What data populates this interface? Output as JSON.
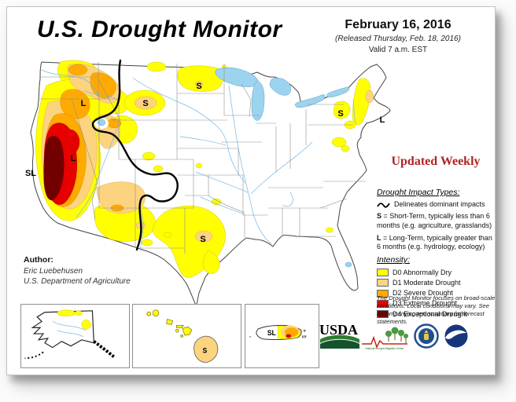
{
  "header": {
    "title": "U.S. Drought Monitor",
    "date": "February 16, 2016",
    "released": "(Released Thursday, Feb. 18, 2016)",
    "valid": "Valid 7 a.m. EST"
  },
  "updated_weekly": "Updated Weekly",
  "impact_types": {
    "heading": "Drought Impact Types:",
    "delineates": "Delineates dominant impacts",
    "short_prefix": "S",
    "short_text": " = Short-Term, typically less than 6 months (e.g. agriculture, grasslands)",
    "long_prefix": "L",
    "long_text": " = Long-Term, typically greater than 6 months (e.g. hydrology, ecology)"
  },
  "intensity": {
    "heading": "Intensity:",
    "items": [
      {
        "label": "D0 Abnormally Dry",
        "color": "#FFFF00"
      },
      {
        "label": "D1 Moderate Drought",
        "color": "#FCD37F"
      },
      {
        "label": "D2 Severe Drought",
        "color": "#FFAA00"
      },
      {
        "label": "D3 Extreme Drought",
        "color": "#E60000"
      },
      {
        "label": "D4 Exceptional Drought",
        "color": "#730000"
      }
    ]
  },
  "disclaimer": "The Drought Monitor focuses on broad-scale conditions. Local conditions may vary. See accompanying text summary for forecast statements.",
  "author": {
    "heading": "Author:",
    "name": "Eric Luebehusen",
    "org": "U.S. Department of Agriculture"
  },
  "map": {
    "labels": [
      {
        "text": "L",
        "region": "oregon"
      },
      {
        "text": "S",
        "region": "wyoming-south-dakota"
      },
      {
        "text": "L",
        "region": "nevada"
      },
      {
        "text": "SL",
        "region": "california-coast"
      },
      {
        "text": "S",
        "region": "north-dakota"
      },
      {
        "text": "S",
        "region": "texas"
      },
      {
        "text": "S",
        "region": "new-york"
      },
      {
        "text": "L",
        "region": "new-england"
      }
    ],
    "water_color": "#9CD3EE",
    "impact_line_color": "#000000"
  },
  "insets": {
    "alaska": {
      "name": "Alaska"
    },
    "hawaii": {
      "name": "Hawaii",
      "label": "S"
    },
    "puerto_rico": {
      "name": "Puerto Rico",
      "label": "SL"
    }
  },
  "logos": [
    {
      "name": "USDA"
    },
    {
      "name": "National Drought Mitigation Center"
    },
    {
      "name": "U.S. Department of Commerce"
    },
    {
      "name": "NOAA"
    }
  ]
}
